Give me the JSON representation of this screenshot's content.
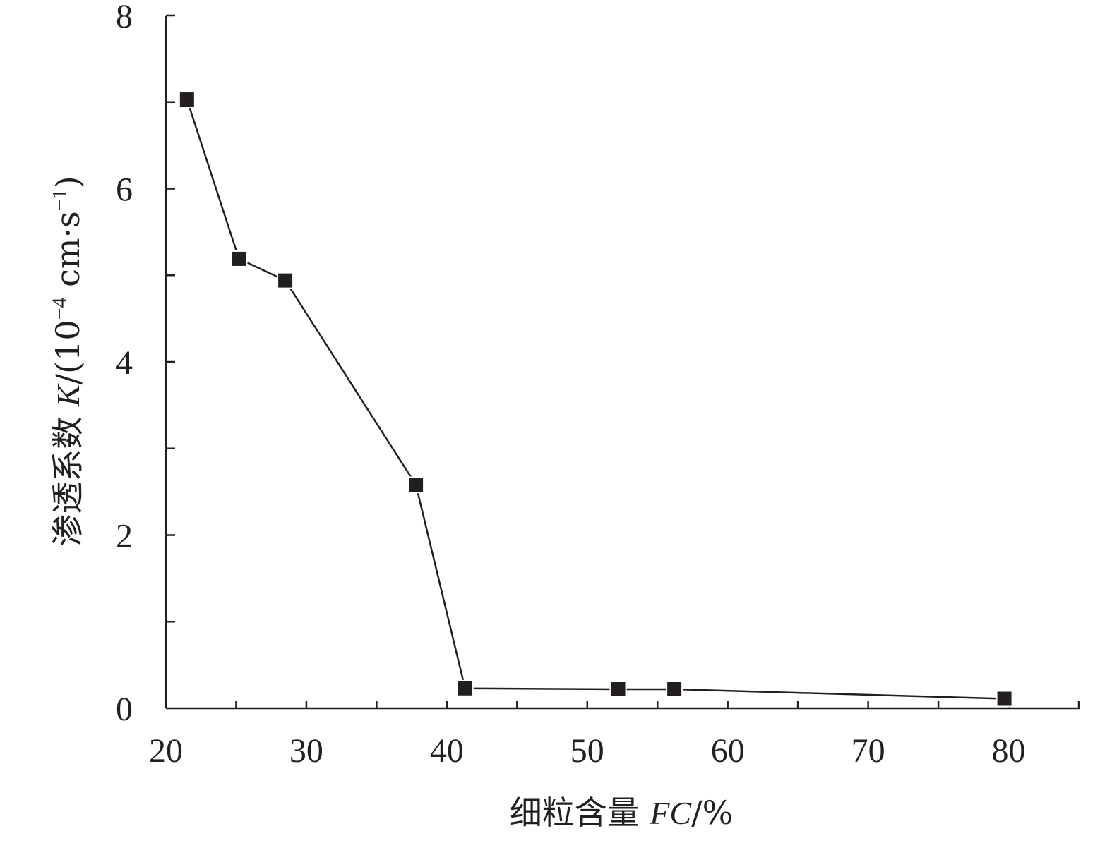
{
  "chart_data": {
    "type": "line",
    "x": [
      21.5,
      25.2,
      28.5,
      37.8,
      41.3,
      52.2,
      56.2,
      79.7
    ],
    "series": [
      {
        "values": [
          7.03,
          5.19,
          4.94,
          2.58,
          0.23,
          0.22,
          0.22,
          0.11
        ],
        "color": "#231f20",
        "marker": "square"
      }
    ],
    "xlim": [
      20,
      85
    ],
    "ylim": [
      0,
      8
    ],
    "x_ticks": [
      "20",
      "30",
      "40",
      "50",
      "60",
      "70",
      "80"
    ],
    "y_ticks": [
      "0",
      "2",
      "4",
      "6",
      "8"
    ],
    "xlabel": {
      "prefix": "细粒含量 ",
      "italic": "FC",
      "suffix": "/%"
    },
    "ylabel": {
      "prefix": "渗透系数 ",
      "italic": "K",
      "mid": "/(10",
      "sup1": "−4",
      "mid2": " cm·s",
      "sup2": "−1",
      "suffix": ")"
    },
    "grid": false,
    "legend": "none"
  }
}
